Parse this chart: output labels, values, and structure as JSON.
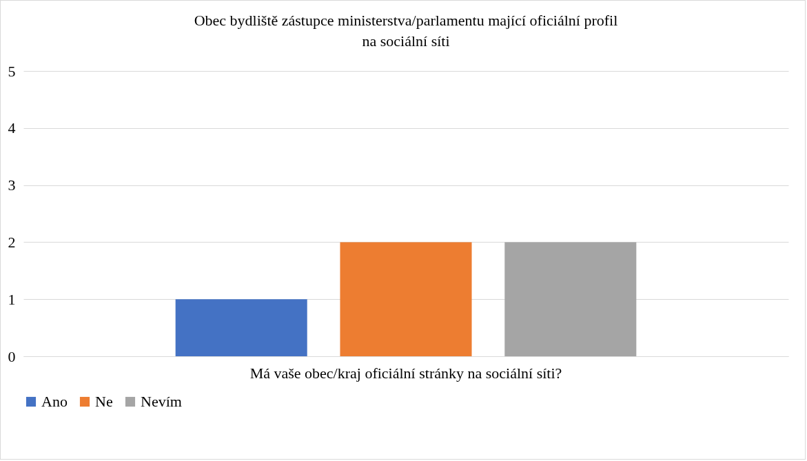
{
  "chart_data": {
    "type": "bar",
    "title": "Obec bydliště zástupce ministerstva/parlamentu mající oficiální profil na sociální síti",
    "categories": [
      "Má vaše obec/kraj oficiální stránky na sociální síti?"
    ],
    "series": [
      {
        "name": "Ano",
        "color": "#4472c4",
        "values": [
          1
        ]
      },
      {
        "name": "Ne",
        "color": "#ed7d31",
        "values": [
          2
        ]
      },
      {
        "name": "Nevím",
        "color": "#a5a5a5",
        "values": [
          2
        ]
      }
    ],
    "ylim": [
      0,
      5
    ],
    "yticks": [
      0,
      1,
      2,
      3,
      4,
      5
    ],
    "grid": "y",
    "legend": "bottom"
  }
}
